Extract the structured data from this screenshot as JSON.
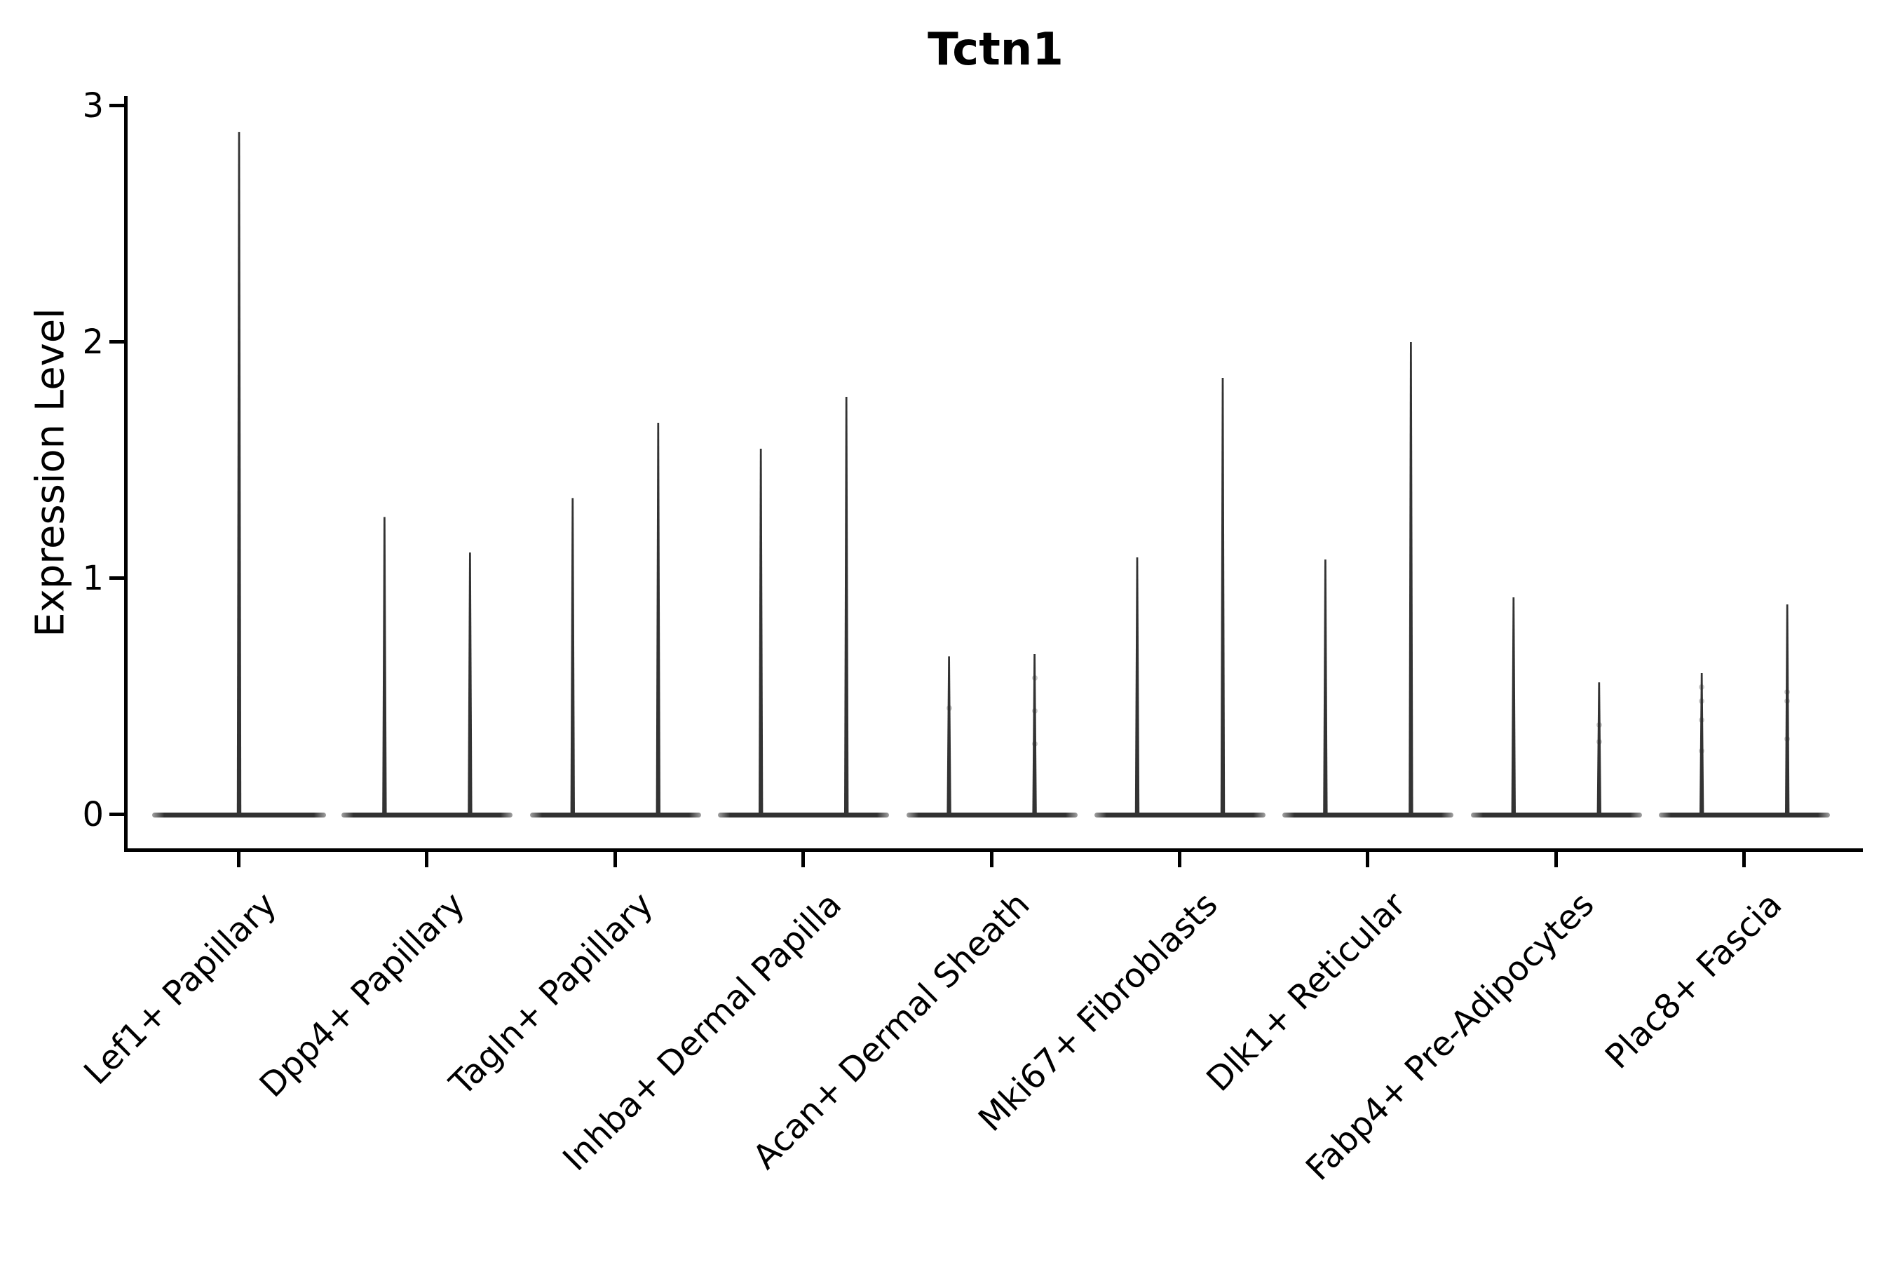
{
  "title": "Tctn1",
  "y_axis": {
    "label": "Expression Level",
    "tick_labels": [
      "0",
      "1",
      "2",
      "3"
    ]
  },
  "x_axis": {
    "categories": [
      "Lef1+ Papillary",
      "Dpp4+ Papillary",
      "Tagln+ Papillary",
      "Inhba+ Dermal Papilla",
      "Acan+ Dermal Sheath",
      "Mki67+ Fibroblasts",
      "Dlk1+ Reticular",
      "Fabp4+ Pre-Adipocytes",
      "Plac8+ Fascia"
    ]
  },
  "chart_data": {
    "type": "violin",
    "title": "Tctn1",
    "xlabel": "",
    "ylabel": "Expression Level",
    "ylim": [
      0,
      3.04
    ],
    "yticks": [
      0,
      1,
      2,
      3
    ],
    "grid": false,
    "legend": "none",
    "description": "Spike-shaped violins flattened at 0; most cells have zero expression (wide flat base at y=0) with a thin tail up to the max expressing cell. First category has one full-width violin; all other categories contain two half-width violins.",
    "categories": [
      "Lef1+ Papillary",
      "Dpp4+ Papillary",
      "Tagln+ Papillary",
      "Inhba+ Dermal Papilla",
      "Acan+ Dermal Sheath",
      "Mki67+ Fibroblasts",
      "Dlk1+ Reticular",
      "Fabp4+ Pre-Adipocytes",
      "Plac8+ Fascia"
    ],
    "groups": [
      {
        "label": "Lef1+ Papillary",
        "violins": [
          {
            "offset": 0,
            "base_half_width": 124,
            "max": 2.89,
            "dots": []
          }
        ]
      },
      {
        "label": "Dpp4+ Papillary",
        "violins": [
          {
            "offset": -61,
            "base_half_width": 61,
            "max": 1.26,
            "dots": []
          },
          {
            "offset": 61,
            "base_half_width": 61,
            "max": 1.11,
            "dots": []
          }
        ]
      },
      {
        "label": "Tagln+ Papillary",
        "violins": [
          {
            "offset": -61,
            "base_half_width": 61,
            "max": 1.34,
            "dots": []
          },
          {
            "offset": 61,
            "base_half_width": 61,
            "max": 1.66,
            "dots": []
          }
        ]
      },
      {
        "label": "Inhba+ Dermal Papilla",
        "violins": [
          {
            "offset": -61,
            "base_half_width": 61,
            "max": 1.55,
            "dots": []
          },
          {
            "offset": 61,
            "base_half_width": 61,
            "max": 1.77,
            "dots": []
          }
        ]
      },
      {
        "label": "Acan+ Dermal Sheath",
        "violins": [
          {
            "offset": -61,
            "base_half_width": 61,
            "max": 0.67,
            "dots": [
              0.45
            ]
          },
          {
            "offset": 61,
            "base_half_width": 61,
            "max": 0.68,
            "dots": [
              0.58,
              0.44,
              0.3
            ]
          }
        ]
      },
      {
        "label": "Mki67+ Fibroblasts",
        "violins": [
          {
            "offset": -61,
            "base_half_width": 61,
            "max": 1.09,
            "dots": []
          },
          {
            "offset": 61,
            "base_half_width": 61,
            "max": 1.85,
            "dots": []
          }
        ]
      },
      {
        "label": "Dlk1+ Reticular",
        "violins": [
          {
            "offset": -61,
            "base_half_width": 61,
            "max": 1.08,
            "dots": []
          },
          {
            "offset": 61,
            "base_half_width": 61,
            "max": 2.0,
            "dots": []
          }
        ]
      },
      {
        "label": "Fabp4+ Pre-Adipocytes",
        "violins": [
          {
            "offset": -61,
            "base_half_width": 61,
            "max": 0.92,
            "dots": []
          },
          {
            "offset": 61,
            "base_half_width": 61,
            "max": 0.56,
            "dots": [
              0.38,
              0.31
            ]
          }
        ]
      },
      {
        "label": "Plac8+ Fascia",
        "violins": [
          {
            "offset": -61,
            "base_half_width": 61,
            "max": 0.6,
            "dots": [
              0.54,
              0.48,
              0.4,
              0.27
            ]
          },
          {
            "offset": 61,
            "base_half_width": 61,
            "max": 0.89,
            "dots": [
              0.52,
              0.48,
              0.32
            ]
          }
        ]
      }
    ],
    "colors": {
      "violin": "#333333",
      "axis": "#000000",
      "text": "#000000",
      "background": "#ffffff"
    }
  }
}
